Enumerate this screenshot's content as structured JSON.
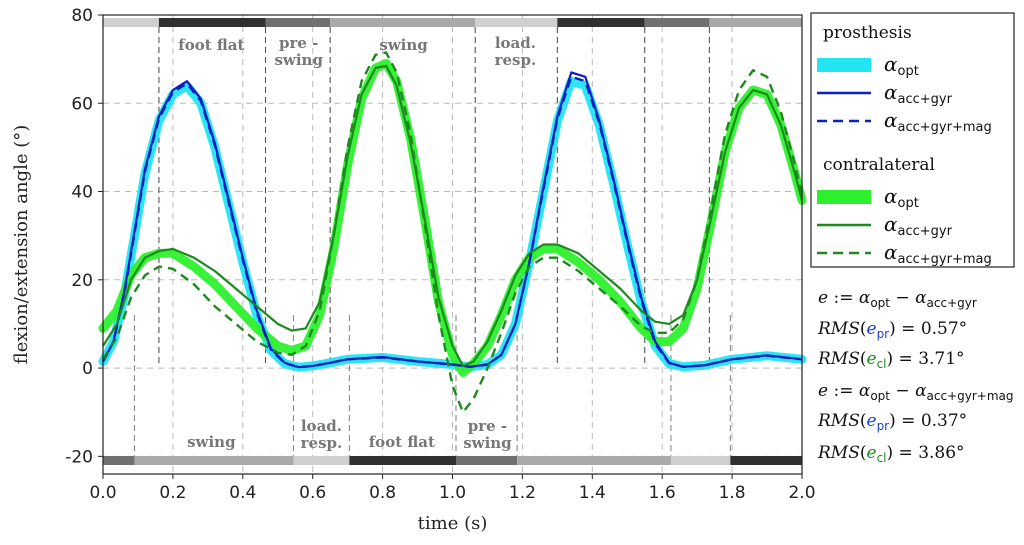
{
  "chart_data": {
    "type": "line",
    "title": "",
    "xlabel": "time (s)",
    "ylabel": "flexion/extension angle (°)",
    "xlim": [
      0.0,
      2.0
    ],
    "ylim": [
      -24,
      80
    ],
    "xticks": [
      "0.0",
      "0.2",
      "0.4",
      "0.6",
      "0.8",
      "1.0",
      "1.2",
      "1.4",
      "1.6",
      "1.8",
      "2.0"
    ],
    "yticks": [
      "-20",
      "0",
      "20",
      "40",
      "60",
      "80"
    ],
    "grid": true,
    "legend_position": "right",
    "top_phases": {
      "labels": [
        "foot flat",
        "pre -\nswing",
        "swing",
        "load.\nresp."
      ],
      "segments": [
        {
          "start": 0.0,
          "end": 0.16,
          "shade": "light"
        },
        {
          "start": 0.16,
          "end": 0.465,
          "shade": "dark"
        },
        {
          "start": 0.465,
          "end": 0.65,
          "shade": "mid"
        },
        {
          "start": 0.65,
          "end": 1.065,
          "shade": "midlight"
        },
        {
          "start": 1.065,
          "end": 1.3,
          "shade": "light"
        },
        {
          "start": 1.3,
          "end": 1.55,
          "shade": "dark"
        },
        {
          "start": 1.55,
          "end": 1.735,
          "shade": "mid"
        },
        {
          "start": 1.735,
          "end": 2.0,
          "shade": "midlight"
        }
      ],
      "boundaries": [
        0.16,
        0.465,
        0.65,
        1.065,
        1.3,
        1.55,
        1.735
      ]
    },
    "bottom_phases": {
      "labels": [
        "swing",
        "load.\nresp.",
        "foot flat",
        "pre -\nswing"
      ],
      "segments": [
        {
          "start": 0.0,
          "end": 0.09,
          "shade": "mid"
        },
        {
          "start": 0.09,
          "end": 0.545,
          "shade": "midlight"
        },
        {
          "start": 0.545,
          "end": 0.705,
          "shade": "light"
        },
        {
          "start": 0.705,
          "end": 1.01,
          "shade": "dark"
        },
        {
          "start": 1.01,
          "end": 1.185,
          "shade": "mid"
        },
        {
          "start": 1.185,
          "end": 1.625,
          "shade": "midlight"
        },
        {
          "start": 1.625,
          "end": 1.795,
          "shade": "light"
        },
        {
          "start": 1.795,
          "end": 2.0,
          "shade": "dark"
        }
      ],
      "boundaries": [
        0.09,
        0.545,
        0.705,
        1.01,
        1.185,
        1.625,
        1.795
      ]
    },
    "series": [
      {
        "group": "prosthesis",
        "name": "α_opt",
        "color": "#22e5f2",
        "style": "band",
        "x": [
          0.0,
          0.03,
          0.06,
          0.09,
          0.12,
          0.16,
          0.2,
          0.24,
          0.28,
          0.32,
          0.36,
          0.4,
          0.44,
          0.48,
          0.52,
          0.56,
          0.6,
          0.65,
          0.7,
          0.8,
          0.9,
          1.0,
          1.05,
          1.1,
          1.14,
          1.18,
          1.22,
          1.26,
          1.3,
          1.34,
          1.38,
          1.42,
          1.46,
          1.5,
          1.54,
          1.58,
          1.62,
          1.66,
          1.72,
          1.8,
          1.9,
          2.0
        ],
        "y": [
          1.5,
          6,
          16,
          30,
          44,
          56,
          62,
          64,
          60,
          50,
          37,
          24,
          12,
          4,
          1,
          0.2,
          0.5,
          1.2,
          2,
          2.4,
          1.5,
          0.8,
          0.3,
          0.8,
          3,
          10,
          24,
          40,
          56,
          65,
          64,
          55,
          42,
          28,
          15,
          5,
          1,
          0.3,
          0.6,
          2,
          2.8,
          2
        ]
      },
      {
        "group": "prosthesis",
        "name": "α_acc+gyr",
        "color": "#0b1fc4",
        "style": "solid",
        "x": [
          0.0,
          0.03,
          0.06,
          0.09,
          0.12,
          0.16,
          0.2,
          0.24,
          0.28,
          0.32,
          0.36,
          0.4,
          0.44,
          0.48,
          0.52,
          0.56,
          0.6,
          0.65,
          0.7,
          0.8,
          0.9,
          1.0,
          1.05,
          1.1,
          1.14,
          1.18,
          1.22,
          1.26,
          1.3,
          1.34,
          1.38,
          1.42,
          1.46,
          1.5,
          1.54,
          1.58,
          1.62,
          1.66,
          1.72,
          1.8,
          1.9,
          2.0
        ],
        "y": [
          1.5,
          6,
          17,
          31,
          45,
          57,
          63,
          65,
          61,
          51,
          38,
          25,
          13,
          4.5,
          1.2,
          0.2,
          0.5,
          1.2,
          2,
          2.5,
          1.5,
          0.8,
          0.3,
          0.8,
          3,
          10,
          24,
          41,
          57,
          67,
          66,
          56,
          43,
          29,
          16,
          6,
          1.2,
          0.3,
          0.6,
          2,
          2.9,
          2
        ]
      },
      {
        "group": "prosthesis",
        "name": "α_acc+gyr+mag",
        "color": "#0b1fc4",
        "style": "dashed",
        "x": [
          0.0,
          0.03,
          0.06,
          0.09,
          0.12,
          0.16,
          0.2,
          0.24,
          0.28,
          0.32,
          0.36,
          0.4,
          0.44,
          0.48,
          0.52,
          0.56,
          0.6,
          0.65,
          0.7,
          0.8,
          0.9,
          1.0,
          1.05,
          1.1,
          1.14,
          1.18,
          1.22,
          1.26,
          1.3,
          1.34,
          1.38,
          1.42,
          1.46,
          1.5,
          1.54,
          1.58,
          1.62,
          1.66,
          1.72,
          1.8,
          1.9,
          2.0
        ],
        "y": [
          1.5,
          6,
          16.5,
          30.5,
          44.5,
          56.5,
          62.5,
          64.5,
          60.5,
          50.5,
          37.5,
          24.5,
          12.5,
          4.2,
          1.1,
          0.2,
          0.5,
          1.2,
          2,
          2.4,
          1.5,
          0.8,
          0.3,
          0.8,
          3,
          10,
          24,
          40.5,
          56.5,
          66,
          65,
          55.5,
          42.5,
          28.5,
          15.5,
          5.5,
          1.1,
          0.3,
          0.6,
          2,
          2.8,
          2
        ]
      },
      {
        "group": "contralateral",
        "name": "α_opt",
        "color": "#2df02d",
        "style": "band",
        "x": [
          0.0,
          0.04,
          0.08,
          0.12,
          0.16,
          0.2,
          0.26,
          0.32,
          0.38,
          0.44,
          0.5,
          0.54,
          0.58,
          0.62,
          0.66,
          0.7,
          0.74,
          0.78,
          0.81,
          0.84,
          0.88,
          0.92,
          0.96,
          1.0,
          1.03,
          1.06,
          1.1,
          1.14,
          1.18,
          1.22,
          1.26,
          1.3,
          1.36,
          1.42,
          1.48,
          1.54,
          1.58,
          1.62,
          1.66,
          1.7,
          1.74,
          1.78,
          1.82,
          1.86,
          1.9,
          1.94,
          1.98,
          2.0
        ],
        "y": [
          9,
          13,
          21,
          25,
          26,
          26,
          23,
          19,
          14,
          9,
          5,
          4,
          5,
          12,
          27,
          46,
          61,
          68,
          69,
          65,
          52,
          34,
          15,
          3,
          -1,
          1,
          5,
          12,
          20,
          25,
          27,
          27,
          24,
          20,
          15,
          9,
          6,
          6,
          9,
          18,
          33,
          49,
          59,
          63,
          62,
          55,
          44,
          38
        ]
      },
      {
        "group": "contralateral",
        "name": "α_acc+gyr",
        "color": "#1e8a1e",
        "style": "solid",
        "x": [
          0.0,
          0.04,
          0.08,
          0.12,
          0.16,
          0.2,
          0.26,
          0.32,
          0.38,
          0.44,
          0.5,
          0.54,
          0.58,
          0.62,
          0.66,
          0.7,
          0.74,
          0.78,
          0.81,
          0.84,
          0.88,
          0.92,
          0.96,
          1.0,
          1.03,
          1.06,
          1.1,
          1.14,
          1.18,
          1.22,
          1.26,
          1.3,
          1.36,
          1.42,
          1.48,
          1.54,
          1.58,
          1.62,
          1.66,
          1.7,
          1.74,
          1.78,
          1.82,
          1.86,
          1.9,
          1.94,
          1.98,
          2.0
        ],
        "y": [
          5,
          10,
          20,
          25,
          26.5,
          27,
          25,
          22,
          18,
          14,
          10,
          8.5,
          9,
          15,
          30,
          48,
          62,
          68,
          68.5,
          64,
          51,
          34,
          16,
          5,
          0.5,
          1.5,
          6,
          13,
          21,
          26,
          28,
          28,
          26,
          22,
          18,
          13,
          10.5,
          10,
          12,
          20,
          34,
          49,
          59,
          63,
          62,
          55,
          44,
          38
        ]
      },
      {
        "group": "contralateral",
        "name": "α_acc+gyr+mag",
        "color": "#1e8a1e",
        "style": "dashed",
        "x": [
          0.0,
          0.04,
          0.08,
          0.12,
          0.16,
          0.2,
          0.26,
          0.32,
          0.38,
          0.44,
          0.5,
          0.54,
          0.58,
          0.62,
          0.66,
          0.7,
          0.74,
          0.78,
          0.81,
          0.84,
          0.88,
          0.92,
          0.96,
          1.0,
          1.03,
          1.06,
          1.1,
          1.14,
          1.18,
          1.22,
          1.26,
          1.3,
          1.36,
          1.42,
          1.48,
          1.54,
          1.58,
          1.62,
          1.66,
          1.7,
          1.74,
          1.78,
          1.82,
          1.86,
          1.9,
          1.94,
          1.98,
          2.0
        ],
        "y": [
          2,
          7,
          16,
          21,
          23,
          22.5,
          19,
          14,
          10,
          6,
          3.5,
          3,
          5,
          13,
          30,
          50,
          65,
          71,
          71.5,
          67,
          53,
          33,
          12,
          -4,
          -10,
          -7,
          0,
          8,
          17,
          23,
          25,
          25,
          22,
          18,
          14,
          9.5,
          8,
          8,
          11,
          20,
          36,
          53,
          63,
          67.5,
          66,
          58,
          46,
          39
        ]
      }
    ],
    "legend": {
      "groups": [
        {
          "title": "prosthesis",
          "entries": [
            {
              "base": "α",
              "sub": "opt",
              "color": "#22e5f2",
              "style": "band"
            },
            {
              "base": "α",
              "sub": "acc+gyr",
              "color": "#0b1fc4",
              "style": "solid"
            },
            {
              "base": "α",
              "sub": "acc+gyr+mag",
              "color": "#0b1fc4",
              "style": "dashed"
            }
          ]
        },
        {
          "title": "contralateral",
          "entries": [
            {
              "base": "α",
              "sub": "opt",
              "color": "#2df02d",
              "style": "band"
            },
            {
              "base": "α",
              "sub": "acc+gyr",
              "color": "#1e8a1e",
              "style": "solid"
            },
            {
              "base": "α",
              "sub": "acc+gyr+mag",
              "color": "#1e8a1e",
              "style": "dashed"
            }
          ]
        }
      ]
    },
    "annotations": [
      {
        "kind": "def",
        "lhs": "e",
        "assign": " := ",
        "a": "α",
        "a_sub": "opt",
        "minus": " − ",
        "b": "α",
        "b_sub": "acc+gyr"
      },
      {
        "kind": "rms",
        "func": "RMS",
        "open": "(",
        "e": "e",
        "e_sub": "pr",
        "close": ")",
        "eq": " = ",
        "value": "0.57°",
        "color": "#1a3fd6"
      },
      {
        "kind": "rms",
        "func": "RMS",
        "open": "(",
        "e": "e",
        "e_sub": "cl",
        "close": ")",
        "eq": " = ",
        "value": "3.71°",
        "color": "#1e8a1e"
      },
      {
        "kind": "def",
        "lhs": "e",
        "assign": " := ",
        "a": "α",
        "a_sub": "opt",
        "minus": " − ",
        "b": "α",
        "b_sub": "acc+gyr+mag"
      },
      {
        "kind": "rms",
        "func": "RMS",
        "open": "(",
        "e": "e",
        "e_sub": "pr",
        "close": ")",
        "eq": " = ",
        "value": "0.37°",
        "color": "#1a3fd6"
      },
      {
        "kind": "rms",
        "func": "RMS",
        "open": "(",
        "e": "e",
        "e_sub": "cl",
        "close": ")",
        "eq": " = ",
        "value": "3.86°",
        "color": "#1e8a1e"
      }
    ]
  }
}
